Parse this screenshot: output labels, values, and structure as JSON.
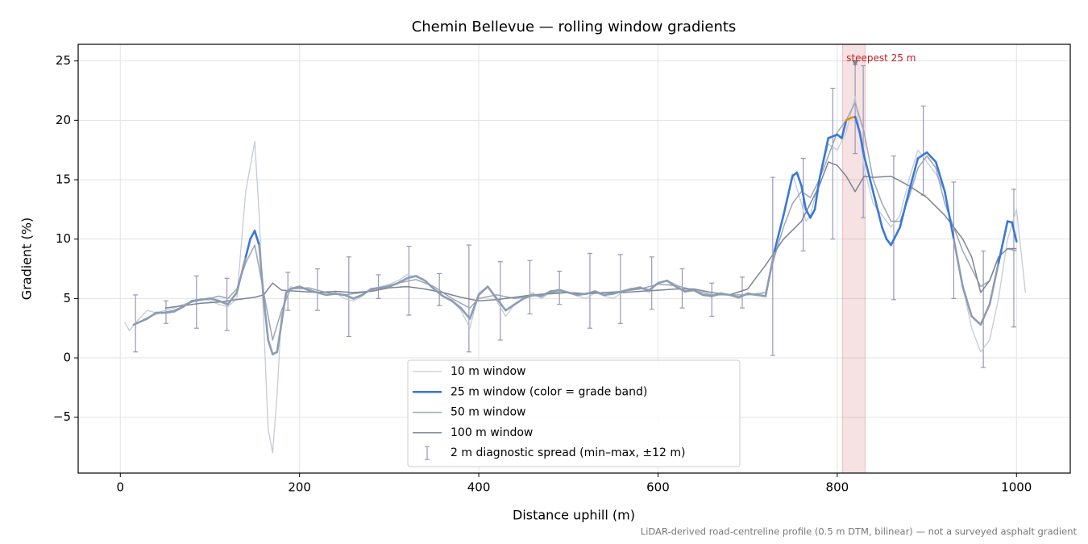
{
  "chart_data": {
    "type": "line",
    "title": "Chemin Bellevue — rolling window gradients",
    "x_label": "Distance uphill (m)",
    "y_label": "Gradient (%)",
    "footnote": "LiDAR-derived road-centreline profile (0.5 m DTM, bilinear) — not a surveyed asphalt gradient",
    "xlim": [
      -47,
      1060
    ],
    "ylim": [
      -9.7,
      26.4
    ],
    "xticks": [
      0,
      200,
      400,
      600,
      800,
      1000
    ],
    "yticks": [
      {
        "value": -5,
        "label": "−5"
      },
      0,
      5,
      10,
      15,
      20,
      25
    ],
    "grid": true,
    "legend": "lower center",
    "series": [
      {
        "name": "10 m window",
        "color": "#c3cbd6",
        "width": 1.3,
        "x": [
          5,
          10,
          20,
          30,
          40,
          50,
          60,
          70,
          80,
          90,
          100,
          110,
          120,
          130,
          140,
          150,
          155,
          160,
          165,
          170,
          175,
          180,
          190,
          200,
          210,
          220,
          230,
          240,
          250,
          260,
          270,
          280,
          290,
          300,
          310,
          320,
          330,
          340,
          350,
          360,
          370,
          380,
          390,
          400,
          410,
          420,
          430,
          440,
          450,
          460,
          470,
          480,
          490,
          500,
          510,
          520,
          530,
          540,
          550,
          560,
          570,
          580,
          590,
          600,
          610,
          620,
          630,
          640,
          650,
          660,
          670,
          680,
          690,
          700,
          710,
          720,
          730,
          740,
          750,
          760,
          765,
          770,
          780,
          790,
          800,
          810,
          820,
          830,
          840,
          850,
          860,
          870,
          880,
          890,
          900,
          910,
          920,
          930,
          940,
          950,
          960,
          970,
          980,
          990,
          1000,
          1010
        ],
        "values": [
          3,
          2.3,
          3.2,
          4,
          3.8,
          4,
          4.2,
          4.5,
          4.7,
          5,
          4.8,
          4.5,
          4.3,
          5,
          14,
          18.2,
          12,
          3,
          -6,
          -8,
          -3,
          4,
          6,
          5.8,
          5.8,
          5.5,
          5.3,
          5.5,
          5,
          4.8,
          5.2,
          5.8,
          6,
          6.2,
          6.5,
          7,
          6.8,
          6.5,
          5.8,
          5.2,
          4.8,
          4,
          2.5,
          5.5,
          6,
          4.8,
          3.5,
          4.5,
          5,
          5.5,
          5,
          5.5,
          5.8,
          5.5,
          5.2,
          5,
          5.5,
          5.2,
          5,
          5.5,
          5.8,
          6,
          5.5,
          6.3,
          6.5,
          6.2,
          5.5,
          5.8,
          5.3,
          5.2,
          5.5,
          5.3,
          5,
          5.5,
          5.3,
          5.5,
          9,
          12,
          15.5,
          13,
          11.5,
          12,
          15,
          18,
          17.5,
          19,
          22,
          16,
          13,
          12,
          11,
          12,
          15,
          17.5,
          16.5,
          15.5,
          14,
          10,
          6,
          2.5,
          0.5,
          1.5,
          5,
          10,
          12.5,
          5.5
        ]
      },
      {
        "name": "25 m window (color = grade band)",
        "color": "#8d9cb4",
        "width": 2.6,
        "grade_bands": [
          {
            "from": 9,
            "color": "#3a78d8"
          },
          {
            "from": 20,
            "color": "#e0900f"
          }
        ],
        "x": [
          15,
          30,
          40,
          50,
          60,
          70,
          80,
          90,
          100,
          110,
          120,
          130,
          140,
          145,
          150,
          155,
          160,
          165,
          170,
          175,
          180,
          185,
          190,
          200,
          210,
          220,
          230,
          240,
          250,
          260,
          270,
          280,
          290,
          300,
          310,
          320,
          330,
          340,
          350,
          360,
          370,
          380,
          390,
          400,
          410,
          420,
          430,
          440,
          450,
          460,
          470,
          480,
          490,
          500,
          510,
          520,
          530,
          540,
          550,
          560,
          570,
          580,
          590,
          600,
          610,
          620,
          630,
          640,
          650,
          660,
          670,
          680,
          690,
          700,
          710,
          720,
          730,
          740,
          750,
          755,
          760,
          765,
          770,
          775,
          780,
          790,
          800,
          805,
          810,
          815,
          820,
          825,
          830,
          840,
          850,
          855,
          860,
          870,
          880,
          890,
          900,
          910,
          920,
          930,
          940,
          950,
          960,
          970,
          980,
          990,
          995,
          1000
        ],
        "values": [
          2.8,
          3.3,
          3.8,
          3.8,
          3.9,
          4.3,
          4.8,
          4.9,
          5,
          4.8,
          4.5,
          5.5,
          8.5,
          10,
          10.7,
          9.5,
          5,
          1.5,
          0.3,
          0.5,
          3,
          5.5,
          5.8,
          6,
          5.7,
          5.5,
          5.3,
          5.4,
          5.3,
          5,
          5.3,
          5.8,
          5.9,
          6,
          6.3,
          6.7,
          6.9,
          6.5,
          5.8,
          5.2,
          4.8,
          4.2,
          3.3,
          5.3,
          6,
          5,
          4,
          4.5,
          5,
          5.3,
          5.2,
          5.6,
          5.7,
          5.5,
          5.3,
          5.4,
          5.6,
          5.3,
          5.4,
          5.6,
          5.8,
          5.9,
          5.7,
          6.3,
          6.5,
          6,
          5.6,
          5.7,
          5.3,
          5.2,
          5.4,
          5.3,
          5.1,
          5.4,
          5.3,
          5.2,
          9,
          12,
          15.3,
          15.6,
          14.5,
          12.5,
          11.8,
          12.5,
          15,
          18.5,
          18.8,
          18.5,
          20,
          20.2,
          20.3,
          19,
          17,
          14,
          11,
          10,
          9.5,
          11,
          14,
          16.8,
          17.3,
          16.5,
          14,
          10,
          6,
          3.5,
          2.8,
          4.5,
          8,
          11.5,
          11.4,
          9.8
        ]
      },
      {
        "name": "50 m window",
        "color": "#9ca6b6",
        "width": 1.5,
        "x": [
          25,
          40,
          60,
          80,
          100,
          110,
          120,
          130,
          140,
          150,
          160,
          170,
          180,
          190,
          210,
          230,
          250,
          270,
          290,
          310,
          330,
          350,
          370,
          390,
          400,
          420,
          440,
          460,
          480,
          500,
          520,
          540,
          560,
          580,
          600,
          620,
          640,
          660,
          680,
          700,
          720,
          730,
          740,
          750,
          760,
          770,
          780,
          790,
          800,
          810,
          820,
          830,
          840,
          850,
          860,
          870,
          880,
          890,
          900,
          910,
          920,
          930,
          940,
          950,
          960,
          970,
          980,
          990,
          1000
        ],
        "values": [
          3.2,
          3.7,
          4,
          4.7,
          5,
          5.2,
          5,
          5.8,
          8,
          9.5,
          5.5,
          1.5,
          4,
          5.8,
          5.9,
          5.5,
          5.3,
          5.5,
          5.9,
          6.3,
          6.6,
          6,
          5,
          4.2,
          5,
          5.3,
          5,
          5.2,
          5.5,
          5.5,
          5.4,
          5.5,
          5.6,
          5.8,
          6.2,
          6.1,
          5.7,
          5.3,
          5.3,
          5.3,
          5.5,
          8.5,
          11,
          13,
          14,
          13.5,
          15,
          17,
          19,
          20,
          21.5,
          19,
          15,
          13,
          11.5,
          11.5,
          13.5,
          16,
          17,
          16,
          13,
          11,
          9,
          7.5,
          6,
          6.5,
          8.5,
          9.2,
          9
        ]
      },
      {
        "name": "100 m window",
        "color": "#7b8494",
        "width": 1.5,
        "x": [
          50,
          70,
          90,
          110,
          130,
          150,
          160,
          170,
          180,
          200,
          220,
          240,
          260,
          280,
          300,
          320,
          340,
          360,
          380,
          400,
          420,
          440,
          460,
          480,
          500,
          520,
          540,
          560,
          580,
          600,
          620,
          640,
          660,
          680,
          700,
          720,
          740,
          760,
          780,
          790,
          800,
          810,
          820,
          830,
          840,
          860,
          880,
          900,
          920,
          940,
          950,
          960,
          970,
          980,
          990,
          1000
        ],
        "values": [
          4.2,
          4.4,
          4.6,
          4.7,
          4.9,
          5.1,
          5.3,
          6.3,
          5.7,
          5.6,
          5.5,
          5.6,
          5.5,
          5.6,
          5.9,
          6,
          5.8,
          5.5,
          5.1,
          4.8,
          4.9,
          5.1,
          5.3,
          5.4,
          5.5,
          5.4,
          5.5,
          5.5,
          5.6,
          5.7,
          5.8,
          5.8,
          5.5,
          5.3,
          5.8,
          7.8,
          10,
          11.5,
          14.5,
          16.5,
          16.2,
          15.3,
          14,
          15.3,
          15.2,
          15.3,
          14.5,
          13.5,
          12,
          10,
          8.5,
          5.5,
          6.5,
          8.5,
          9.2,
          9.2
        ]
      }
    ],
    "error_bars": {
      "name": "2 m diagnostic spread (min–max, ±12 m)",
      "color": "#9a96bd",
      "x": [
        17,
        51,
        85,
        119,
        187,
        220,
        255,
        288,
        322,
        356,
        389,
        424,
        457,
        490,
        524,
        558,
        593,
        627,
        660,
        694,
        728,
        762,
        795,
        820,
        829,
        863,
        896,
        930,
        963,
        997
      ],
      "lower": [
        0.5,
        2.9,
        2.5,
        2.3,
        4,
        4,
        1.8,
        5,
        3.6,
        4.4,
        0.5,
        1.5,
        3.7,
        4.5,
        2.5,
        2.9,
        4.1,
        4.2,
        3.5,
        4.2,
        0.2,
        9,
        10,
        17.2,
        11.8,
        4.9,
        13.7,
        5,
        -0.8,
        2.6
      ],
      "upper": [
        5.3,
        4.8,
        6.9,
        6.7,
        7.2,
        7.5,
        8.5,
        7,
        9.4,
        7.1,
        9.5,
        8.1,
        8.2,
        7.3,
        8.8,
        8.7,
        8.5,
        7.5,
        6.3,
        6.8,
        15.2,
        16.8,
        22.7,
        24.7,
        24.6,
        17,
        21.2,
        14.8,
        9,
        14.2
      ]
    },
    "steepest": {
      "label": "steepest 25 m",
      "x": 820,
      "y": 24.8,
      "span": [
        806,
        831
      ],
      "color": "#c0202a",
      "marker_color": "#7b8494"
    }
  }
}
